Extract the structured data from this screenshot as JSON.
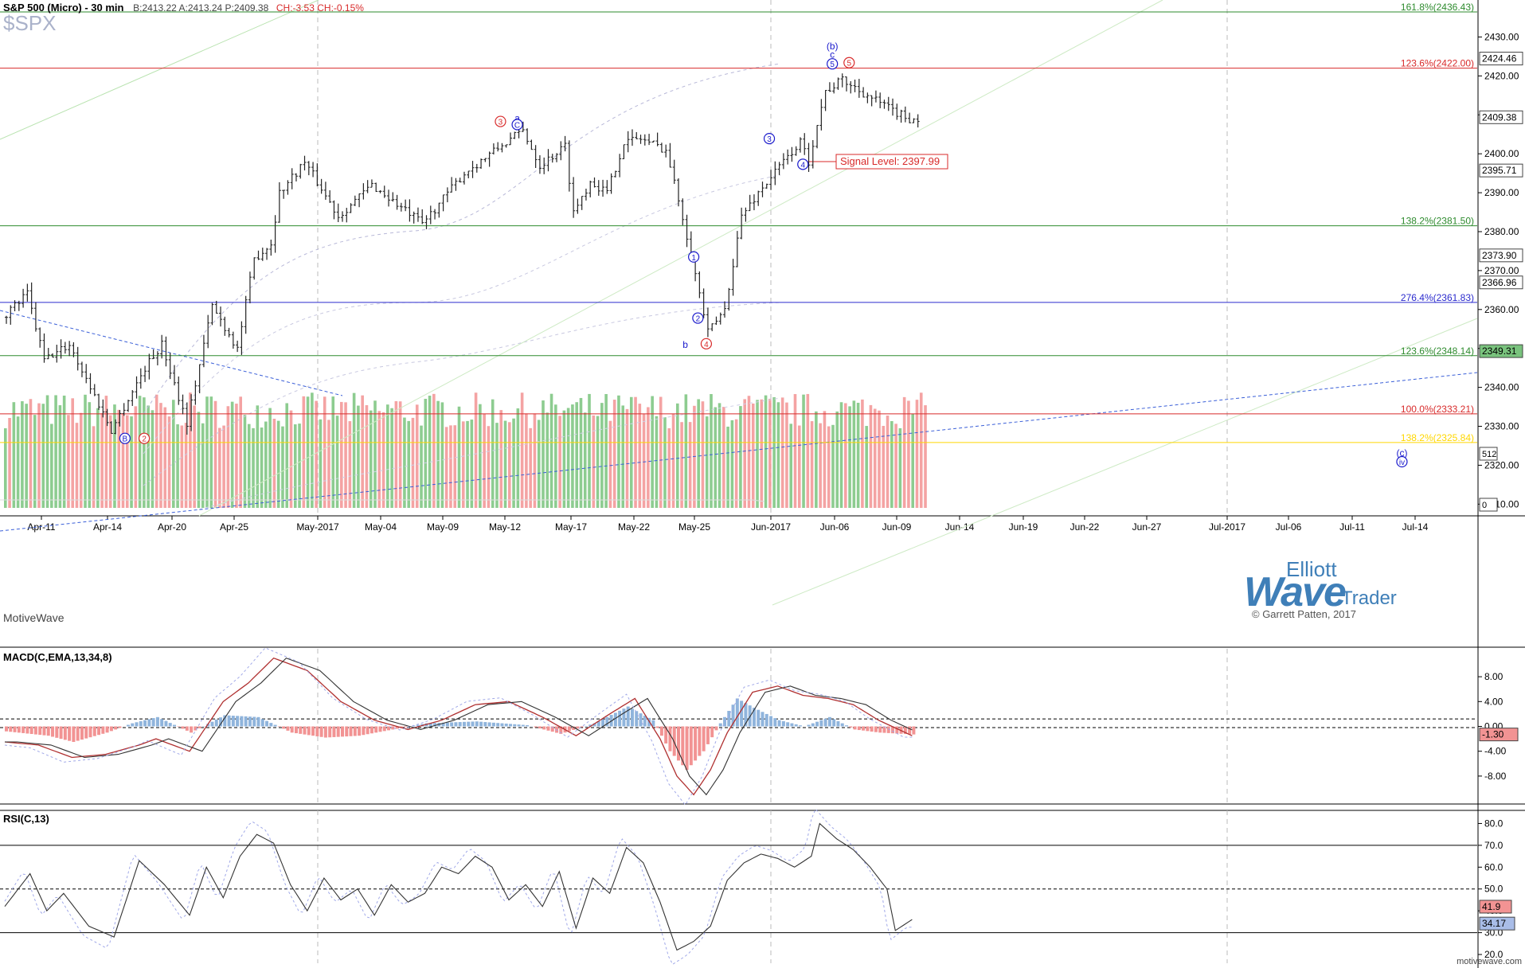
{
  "header": {
    "title": "S&P 500 (Micro) - 30 min",
    "quote": "B:2413.22  A:2413.24  P:2409.38",
    "change": "CH:-3.53  CH:-0.15%",
    "ticker": "$SPX",
    "credit": "MotiveWave"
  },
  "logo": {
    "line1": "Elliott",
    "line2": "Wave",
    "line3": "Trader",
    "line4": "© Garrett Patten, 2017"
  },
  "watermark": "motivewave.com",
  "colors": {
    "up_bar": "#79c37d",
    "down_bar": "#f29393",
    "fib_green": "#2e8b2e",
    "fib_red": "#d82a2a",
    "fib_blue": "#2a2acd",
    "fib_yellow": "#ffd700",
    "wave_blue": "#1a1acc",
    "wave_red": "#d82a2a"
  },
  "chart_data": [
    {
      "type": "candlestick-ohlc",
      "title": "S&P 500 (Micro) - 30 min",
      "x_tick_labels": [
        "Apr-11",
        "Apr-14",
        "Apr-20",
        "Apr-25",
        "May-2017",
        "May-04",
        "May-09",
        "May-12",
        "May-17",
        "May-22",
        "May-25",
        "Jun-2017",
        "Jun-06",
        "Jun-09",
        "Jun-14",
        "Jun-19",
        "Jun-22",
        "Jun-27",
        "Jul-2017",
        "Jul-06",
        "Jul-11",
        "Jul-14"
      ],
      "y_ticks": [
        2310,
        2320,
        2330,
        2340,
        2350,
        2360,
        2370,
        2380,
        2390,
        2400,
        2410,
        2420,
        2430
      ],
      "ylim": [
        2307,
        2439.5
      ],
      "price_path_keypoints": [
        {
          "t": 0,
          "p": 2358
        },
        {
          "t": 3,
          "p": 2364
        },
        {
          "t": 5,
          "p": 2347
        },
        {
          "t": 8,
          "p": 2351
        },
        {
          "t": 13,
          "p": 2329
        },
        {
          "t": 17,
          "p": 2345
        },
        {
          "t": 19,
          "p": 2351
        },
        {
          "t": 22,
          "p": 2331
        },
        {
          "t": 25,
          "p": 2361
        },
        {
          "t": 28,
          "p": 2350
        },
        {
          "t": 30,
          "p": 2373
        },
        {
          "t": 32,
          "p": 2377
        },
        {
          "t": 33,
          "p": 2390
        },
        {
          "t": 36,
          "p": 2398
        },
        {
          "t": 40,
          "p": 2384
        },
        {
          "t": 44,
          "p": 2392
        },
        {
          "t": 50,
          "p": 2382
        },
        {
          "t": 55,
          "p": 2395
        },
        {
          "t": 60,
          "p": 2403
        },
        {
          "t": 62,
          "p": 2406
        },
        {
          "t": 64,
          "p": 2397
        },
        {
          "t": 67,
          "p": 2402
        },
        {
          "t": 68,
          "p": 2385
        },
        {
          "t": 70,
          "p": 2393
        },
        {
          "t": 72,
          "p": 2390
        },
        {
          "t": 74,
          "p": 2403
        },
        {
          "t": 76,
          "p": 2404
        },
        {
          "t": 79,
          "p": 2401
        },
        {
          "t": 81,
          "p": 2384
        },
        {
          "t": 83,
          "p": 2364
        },
        {
          "t": 84,
          "p": 2354
        },
        {
          "t": 86,
          "p": 2360
        },
        {
          "t": 88,
          "p": 2384
        },
        {
          "t": 90,
          "p": 2390
        },
        {
          "t": 93,
          "p": 2398
        },
        {
          "t": 95,
          "p": 2403
        },
        {
          "t": 96,
          "p": 2398
        },
        {
          "t": 97,
          "p": 2408
        },
        {
          "t": 98,
          "p": 2416
        },
        {
          "t": 100,
          "p": 2419
        },
        {
          "t": 103,
          "p": 2415
        },
        {
          "t": 106,
          "p": 2411
        },
        {
          "t": 108,
          "p": 2409
        }
      ],
      "last_price": 2409.38,
      "annotations": {
        "fib_levels": [
          {
            "label": "161.8%(2436.43)",
            "value": 2436.43,
            "color": "green"
          },
          {
            "label": "123.6%(2422.00)",
            "value": 2422.0,
            "color": "red"
          },
          {
            "label": "138.2%(2381.50)",
            "value": 2381.5,
            "color": "green"
          },
          {
            "label": "276.4%(2361.83)",
            "value": 2361.83,
            "color": "blue"
          },
          {
            "label": "123.6%(2348.14)",
            "value": 2348.14,
            "color": "green"
          },
          {
            "label": "100.0%(2333.21)",
            "value": 2333.21,
            "color": "red"
          },
          {
            "label": "138.2%(2325.84)",
            "value": 2325.84,
            "color": "yellow"
          }
        ],
        "signal_label": "Signal Level: 2397.99",
        "signal_value": 2397.99,
        "price_labels": [
          {
            "text": "2424.46",
            "value": 2424.46,
            "bg": "#ffffff"
          },
          {
            "text": "2409.38",
            "value": 2409.38,
            "bg": "#ffffff"
          },
          {
            "text": "2395.71",
            "value": 2395.71,
            "bg": "#ffffff"
          },
          {
            "text": "2373.90",
            "value": 2373.9,
            "bg": "#ffffff"
          },
          {
            "text": "2366.96",
            "value": 2366.96,
            "bg": "#ffffff"
          },
          {
            "text": "2349.31",
            "value": 2349.31,
            "bg": "#79c37d"
          }
        ],
        "volume_axis_labels": [
          "512",
          "0"
        ],
        "wave_labels": [
          {
            "text": "(b)",
            "t": 98.5,
            "p": 2427.6,
            "color": "blue",
            "circle": false
          },
          {
            "text": "c",
            "t": 98.5,
            "p": 2425.5,
            "color": "blue",
            "circle": false
          },
          {
            "text": "5",
            "t": 98.5,
            "p": 2423.1,
            "color": "blue",
            "circle": true
          },
          {
            "text": "5",
            "t": 100.5,
            "p": 2423.4,
            "color": "red",
            "circle": true
          },
          {
            "text": "3",
            "t": 59,
            "p": 2408.3,
            "color": "red",
            "circle": true
          },
          {
            "text": "a",
            "t": 61,
            "p": 2409.1,
            "color": "blue",
            "circle": false
          },
          {
            "text": "C",
            "t": 61,
            "p": 2407.5,
            "color": "blue",
            "circle": true
          },
          {
            "text": "3",
            "t": 91,
            "p": 2403.9,
            "color": "blue",
            "circle": true
          },
          {
            "text": "4",
            "t": 95,
            "p": 2397.3,
            "color": "blue",
            "circle": true
          },
          {
            "text": "1",
            "t": 82,
            "p": 2373.5,
            "color": "blue",
            "circle": true
          },
          {
            "text": "2",
            "t": 82.5,
            "p": 2357.8,
            "color": "blue",
            "circle": true
          },
          {
            "text": "4",
            "t": 83.5,
            "p": 2351.2,
            "color": "red",
            "circle": true
          },
          {
            "text": "b",
            "t": 81,
            "p": 2351.0,
            "color": "blue",
            "circle": false
          },
          {
            "text": "B",
            "t": 14.3,
            "p": 2326.9,
            "color": "blue",
            "circle": true
          },
          {
            "text": "2",
            "t": 16.6,
            "p": 2326.9,
            "color": "red",
            "circle": true
          },
          {
            "text": "(c)",
            "t": 166.3,
            "p": 2323.2,
            "color": "blue",
            "circle": false
          },
          {
            "text": "iv",
            "t": 166.3,
            "p": 2320.9,
            "color": "blue",
            "circle": true
          }
        ]
      }
    },
    {
      "type": "line",
      "title": "MACD(C,EMA,13,34,8)",
      "y_ticks": [
        8.0,
        4.0,
        0.0,
        -4.0,
        -8.0
      ],
      "current_value": -1.3,
      "hist_keypoints": [
        {
          "t": 0,
          "v": -0.8
        },
        {
          "t": 5,
          "v": -1.5
        },
        {
          "t": 8,
          "v": -2.5
        },
        {
          "t": 12,
          "v": -1.0
        },
        {
          "t": 15,
          "v": 0.5
        },
        {
          "t": 18,
          "v": 1.5
        },
        {
          "t": 22,
          "v": -1.0
        },
        {
          "t": 26,
          "v": 1.8
        },
        {
          "t": 30,
          "v": 1.5
        },
        {
          "t": 34,
          "v": -1.0
        },
        {
          "t": 38,
          "v": -1.8
        },
        {
          "t": 42,
          "v": -1.5
        },
        {
          "t": 46,
          "v": -0.5
        },
        {
          "t": 50,
          "v": 0.5
        },
        {
          "t": 56,
          "v": 0.8
        },
        {
          "t": 62,
          "v": 0.2
        },
        {
          "t": 66,
          "v": -1.2
        },
        {
          "t": 70,
          "v": 0.5
        },
        {
          "t": 74,
          "v": 3.2
        },
        {
          "t": 77,
          "v": 1.0
        },
        {
          "t": 79,
          "v": -4.0
        },
        {
          "t": 81,
          "v": -7.0
        },
        {
          "t": 83,
          "v": -4.0
        },
        {
          "t": 85,
          "v": 0.5
        },
        {
          "t": 87,
          "v": 4.5
        },
        {
          "t": 89,
          "v": 3.0
        },
        {
          "t": 92,
          "v": 1.0
        },
        {
          "t": 95,
          "v": 0.0
        },
        {
          "t": 98,
          "v": 1.5
        },
        {
          "t": 101,
          "v": -0.5
        },
        {
          "t": 104,
          "v": -1.0
        },
        {
          "t": 108,
          "v": -1.3
        }
      ],
      "macd_keypoints": [
        {
          "t": 0,
          "v": -2.5
        },
        {
          "t": 4,
          "v": -3.0
        },
        {
          "t": 8,
          "v": -5.0
        },
        {
          "t": 12,
          "v": -4.5
        },
        {
          "t": 16,
          "v": -3.0
        },
        {
          "t": 18,
          "v": -2.0
        },
        {
          "t": 22,
          "v": -4.0
        },
        {
          "t": 26,
          "v": 4.0
        },
        {
          "t": 29,
          "v": 7.0
        },
        {
          "t": 32,
          "v": 11.0
        },
        {
          "t": 36,
          "v": 9.0
        },
        {
          "t": 40,
          "v": 4.0
        },
        {
          "t": 44,
          "v": 1.0
        },
        {
          "t": 48,
          "v": -0.5
        },
        {
          "t": 52,
          "v": 1.0
        },
        {
          "t": 56,
          "v": 3.5
        },
        {
          "t": 60,
          "v": 4.0
        },
        {
          "t": 64,
          "v": 1.5
        },
        {
          "t": 68,
          "v": -1.5
        },
        {
          "t": 72,
          "v": 2.0
        },
        {
          "t": 75,
          "v": 4.5
        },
        {
          "t": 78,
          "v": -2.0
        },
        {
          "t": 80,
          "v": -8.0
        },
        {
          "t": 82,
          "v": -11.0
        },
        {
          "t": 84,
          "v": -7.0
        },
        {
          "t": 86,
          "v": -1.0
        },
        {
          "t": 89,
          "v": 5.5
        },
        {
          "t": 92,
          "v": 6.5
        },
        {
          "t": 95,
          "v": 5.0
        },
        {
          "t": 98,
          "v": 4.5
        },
        {
          "t": 101,
          "v": 3.5
        },
        {
          "t": 104,
          "v": 1.0
        },
        {
          "t": 108,
          "v": -1.5
        }
      ]
    },
    {
      "type": "line",
      "title": "RSI(C,13)",
      "y_ticks": [
        80.0,
        70.0,
        60.0,
        50.0,
        40.0,
        30.0,
        20.0
      ],
      "hlines": [
        70,
        50,
        30
      ],
      "current_values": [
        41.9,
        34.17
      ],
      "rsi_keypoints": [
        {
          "t": 0,
          "v": 42
        },
        {
          "t": 3,
          "v": 57
        },
        {
          "t": 5,
          "v": 40
        },
        {
          "t": 7,
          "v": 48
        },
        {
          "t": 10,
          "v": 33
        },
        {
          "t": 13,
          "v": 28
        },
        {
          "t": 16,
          "v": 63
        },
        {
          "t": 19,
          "v": 52
        },
        {
          "t": 22,
          "v": 38
        },
        {
          "t": 24,
          "v": 60
        },
        {
          "t": 26,
          "v": 46
        },
        {
          "t": 28,
          "v": 65
        },
        {
          "t": 30,
          "v": 75
        },
        {
          "t": 32,
          "v": 71
        },
        {
          "t": 34,
          "v": 52
        },
        {
          "t": 36,
          "v": 40
        },
        {
          "t": 38,
          "v": 55
        },
        {
          "t": 40,
          "v": 45
        },
        {
          "t": 42,
          "v": 50
        },
        {
          "t": 44,
          "v": 38
        },
        {
          "t": 46,
          "v": 52
        },
        {
          "t": 48,
          "v": 44
        },
        {
          "t": 50,
          "v": 48
        },
        {
          "t": 52,
          "v": 60
        },
        {
          "t": 54,
          "v": 57
        },
        {
          "t": 56,
          "v": 65
        },
        {
          "t": 58,
          "v": 60
        },
        {
          "t": 60,
          "v": 45
        },
        {
          "t": 62,
          "v": 52
        },
        {
          "t": 64,
          "v": 42
        },
        {
          "t": 66,
          "v": 58
        },
        {
          "t": 68,
          "v": 32
        },
        {
          "t": 70,
          "v": 55
        },
        {
          "t": 72,
          "v": 48
        },
        {
          "t": 74,
          "v": 69
        },
        {
          "t": 76,
          "v": 62
        },
        {
          "t": 78,
          "v": 44
        },
        {
          "t": 80,
          "v": 22
        },
        {
          "t": 82,
          "v": 26
        },
        {
          "t": 84,
          "v": 33
        },
        {
          "t": 86,
          "v": 54
        },
        {
          "t": 88,
          "v": 62
        },
        {
          "t": 90,
          "v": 66
        },
        {
          "t": 92,
          "v": 64
        },
        {
          "t": 94,
          "v": 60
        },
        {
          "t": 96,
          "v": 65
        },
        {
          "t": 97,
          "v": 80
        },
        {
          "t": 99,
          "v": 73
        },
        {
          "t": 101,
          "v": 68
        },
        {
          "t": 103,
          "v": 60
        },
        {
          "t": 105,
          "v": 50
        },
        {
          "t": 106,
          "v": 31
        },
        {
          "t": 108,
          "v": 36
        }
      ]
    }
  ]
}
